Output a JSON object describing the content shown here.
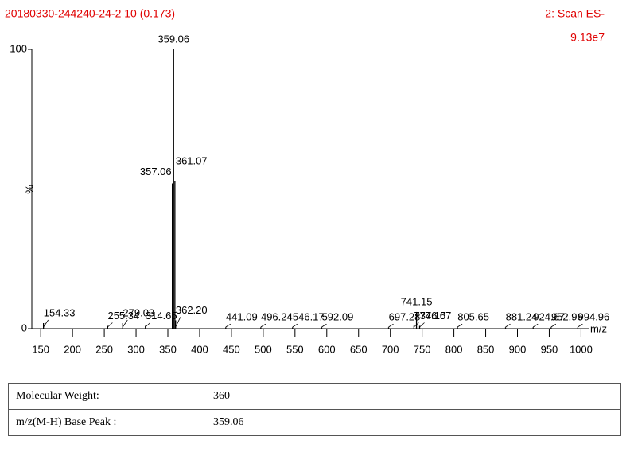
{
  "chart_data": {
    "type": "spectrum",
    "title": "20180330-244240-24-2 10 (0.173)",
    "scan": "2: Scan ES-",
    "intensity": "9.13e7",
    "y_label": "%",
    "x_label": "m/z",
    "color": "#000000",
    "xlim": [
      136,
      1012
    ],
    "xticks": [
      150,
      200,
      250,
      300,
      350,
      400,
      450,
      500,
      550,
      600,
      650,
      700,
      750,
      800,
      850,
      900,
      950,
      1000
    ],
    "ylim": [
      0,
      100
    ],
    "yticks": [
      0,
      100
    ],
    "x": [
      154.33,
      255.34,
      279.03,
      314.65,
      357.06,
      359.06,
      361.07,
      362.2,
      441.09,
      496.24,
      546.17,
      592.09,
      697.28,
      737.15,
      741.15,
      746.07,
      805.65,
      881.24,
      924.67,
      952.96,
      994.96
    ],
    "labels": [
      "154.33",
      "255.34",
      "279.03",
      "314.65",
      "357.06",
      "359.06",
      "361.07",
      "362.20",
      "441.09",
      "496.24",
      "546.17",
      "592.09",
      "697.28",
      "737.15",
      "741.15",
      "746.07",
      "805.65",
      "881.24",
      "924.67",
      "952.96",
      "994.96"
    ],
    "values": [
      2,
      1,
      2,
      1,
      52,
      100,
      53,
      3,
      0.5,
      0.5,
      0.5,
      0.5,
      0.5,
      1,
      6,
      1,
      0.5,
      0.5,
      0.5,
      0.5,
      0.5
    ]
  },
  "table": {
    "rows": [
      [
        "Molecular Weight:",
        "360"
      ],
      [
        "m/z(M-H) Base Peak :",
        "359.06"
      ]
    ]
  }
}
